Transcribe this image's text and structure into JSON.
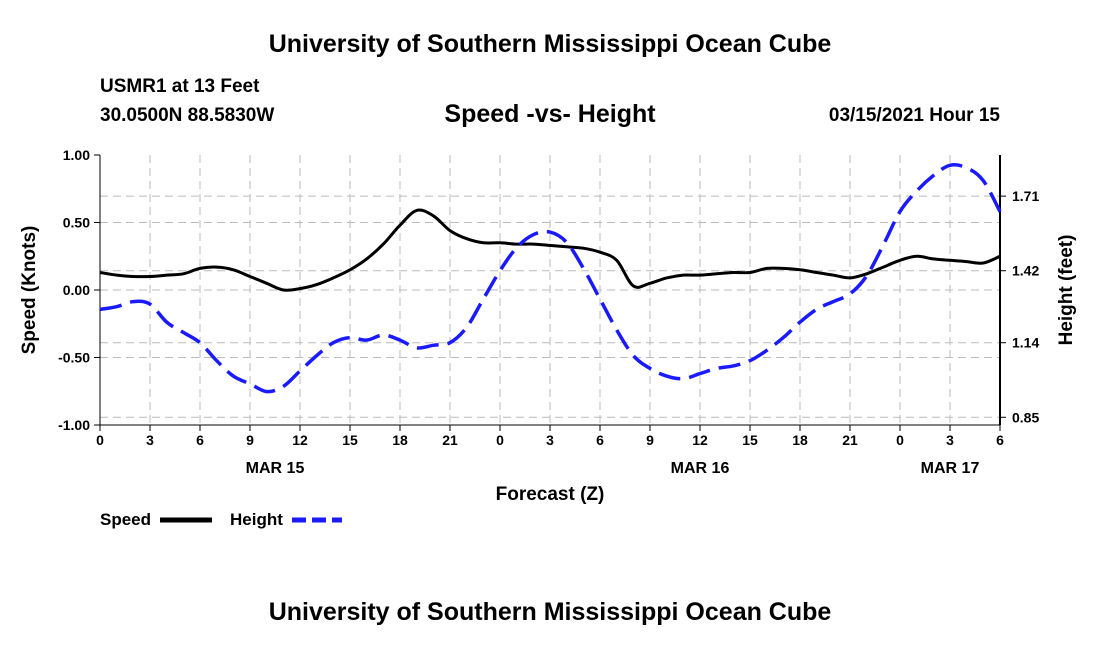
{
  "header": {
    "title": "University of Southern Mississippi Ocean Cube",
    "station": "USMR1 at 13 Feet",
    "coords": "30.0500N 88.5830W",
    "chart_title": "Speed -vs- Height",
    "datetime": "03/15/2021 Hour 15"
  },
  "footer": {
    "title": "University of Southern Mississippi Ocean Cube"
  },
  "legend": {
    "speed_label": "Speed",
    "height_label": "Height"
  },
  "colors": {
    "speed": "#000000",
    "height": "#1a1aff",
    "grid": "#bbbbbb"
  },
  "chart_data": {
    "type": "line",
    "xlabel": "Forecast (Z)",
    "ylabel_left": "Speed (Knots)",
    "ylabel_right": "Height (feet)",
    "x_range": [
      0,
      54
    ],
    "x_tick_labels": [
      "0",
      "3",
      "6",
      "9",
      "12",
      "15",
      "18",
      "21",
      "0",
      "3",
      "6",
      "9",
      "12",
      "15",
      "18",
      "21",
      "0",
      "3",
      "6"
    ],
    "x_tick_values": [
      0,
      3,
      6,
      9,
      12,
      15,
      18,
      21,
      24,
      27,
      30,
      33,
      36,
      39,
      42,
      45,
      48,
      51,
      54
    ],
    "day_labels": [
      {
        "label": "MAR 15",
        "x": 10.5
      },
      {
        "label": "MAR 16",
        "x": 36
      },
      {
        "label": "MAR 17",
        "x": 51
      }
    ],
    "ylim_left": [
      -1.0,
      1.0
    ],
    "yticks_left": [
      "1.00",
      "0.50",
      "0.00",
      "-0.50",
      "-1.00"
    ],
    "yticks_left_values": [
      1.0,
      0.5,
      0.0,
      -0.5,
      -1.0
    ],
    "ylim_right": [
      0.82,
      1.87
    ],
    "yticks_right": [
      "1.71",
      "1.42",
      "1.14",
      "0.85"
    ],
    "yticks_right_values": [
      1.71,
      1.42,
      1.14,
      0.85
    ],
    "series": [
      {
        "name": "Speed",
        "axis": "left",
        "style": "solid",
        "x": [
          0,
          1,
          2,
          3,
          4,
          5,
          6,
          7,
          8,
          9,
          10,
          11,
          12,
          13,
          14,
          15,
          16,
          17,
          18,
          19,
          20,
          21,
          22,
          23,
          24,
          25,
          26,
          27,
          28,
          29,
          30,
          31,
          32,
          33,
          34,
          35,
          36,
          37,
          38,
          39,
          40,
          41,
          42,
          43,
          44,
          45,
          46,
          47,
          48,
          49,
          50,
          51,
          52,
          53,
          54
        ],
        "values": [
          0.13,
          0.11,
          0.1,
          0.1,
          0.11,
          0.12,
          0.16,
          0.17,
          0.15,
          0.1,
          0.05,
          0.0,
          0.01,
          0.04,
          0.09,
          0.15,
          0.23,
          0.34,
          0.48,
          0.59,
          0.55,
          0.44,
          0.38,
          0.35,
          0.35,
          0.34,
          0.34,
          0.33,
          0.32,
          0.31,
          0.28,
          0.22,
          0.03,
          0.05,
          0.09,
          0.11,
          0.11,
          0.12,
          0.13,
          0.13,
          0.16,
          0.16,
          0.15,
          0.13,
          0.11,
          0.09,
          0.12,
          0.17,
          0.22,
          0.25,
          0.23,
          0.22,
          0.21,
          0.2,
          0.25
        ]
      },
      {
        "name": "Height",
        "axis": "right",
        "style": "dashed",
        "x": [
          0,
          1,
          2,
          3,
          4,
          5,
          6,
          7,
          8,
          9,
          10,
          11,
          12,
          13,
          14,
          15,
          16,
          17,
          18,
          19,
          20,
          21,
          22,
          23,
          24,
          25,
          26,
          27,
          28,
          29,
          30,
          31,
          32,
          33,
          34,
          35,
          36,
          37,
          38,
          39,
          40,
          41,
          42,
          43,
          44,
          45,
          46,
          47,
          48,
          49,
          50,
          51,
          52,
          53,
          54
        ],
        "values": [
          1.27,
          1.28,
          1.3,
          1.29,
          1.22,
          1.18,
          1.14,
          1.07,
          1.01,
          0.98,
          0.95,
          0.97,
          1.03,
          1.09,
          1.14,
          1.16,
          1.15,
          1.17,
          1.15,
          1.12,
          1.13,
          1.14,
          1.2,
          1.31,
          1.42,
          1.51,
          1.56,
          1.57,
          1.53,
          1.43,
          1.31,
          1.19,
          1.09,
          1.04,
          1.01,
          1.0,
          1.02,
          1.04,
          1.05,
          1.07,
          1.11,
          1.16,
          1.22,
          1.27,
          1.3,
          1.33,
          1.4,
          1.52,
          1.65,
          1.73,
          1.79,
          1.83,
          1.82,
          1.77,
          1.65
        ]
      }
    ]
  }
}
